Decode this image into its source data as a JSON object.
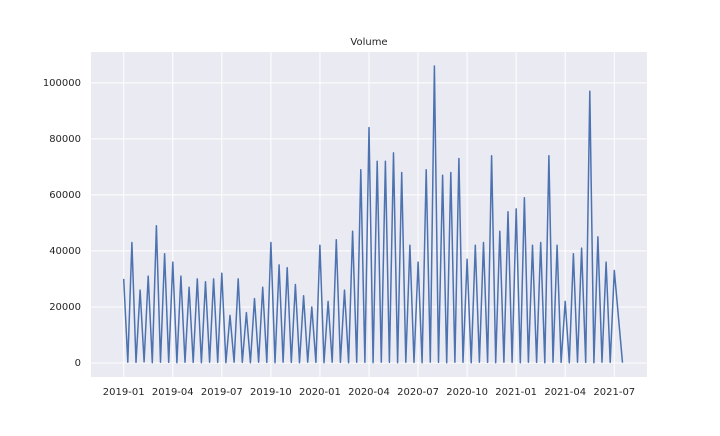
{
  "chart_data": {
    "type": "line",
    "title": "Volume",
    "grid": true,
    "xlim": [
      "2018-11",
      "2021-09"
    ],
    "xticks": [
      "2019-01",
      "2019-04",
      "2019-07",
      "2019-10",
      "2020-01",
      "2020-04",
      "2020-07",
      "2020-10",
      "2021-01",
      "2021-04",
      "2021-07"
    ],
    "ylim": [
      -5000,
      111000
    ],
    "yticks": [
      0,
      20000,
      40000,
      60000,
      80000,
      100000
    ],
    "x": [
      "2019-01",
      "2019-01",
      "2019-01",
      "2019-01",
      "2019-02",
      "2019-02",
      "2019-02",
      "2019-02",
      "2019-03",
      "2019-03",
      "2019-03",
      "2019-03",
      "2019-04",
      "2019-04",
      "2019-04",
      "2019-04",
      "2019-05",
      "2019-05",
      "2019-05",
      "2019-05",
      "2019-06",
      "2019-06",
      "2019-06",
      "2019-06",
      "2019-07",
      "2019-07",
      "2019-07",
      "2019-07",
      "2019-08",
      "2019-08",
      "2019-08",
      "2019-08",
      "2019-09",
      "2019-09",
      "2019-09",
      "2019-09",
      "2019-10",
      "2019-10",
      "2019-10",
      "2019-10",
      "2019-11",
      "2019-11",
      "2019-11",
      "2019-11",
      "2019-12",
      "2019-12",
      "2019-12",
      "2019-12",
      "2020-01",
      "2020-01",
      "2020-01",
      "2020-01",
      "2020-02",
      "2020-02",
      "2020-02",
      "2020-02",
      "2020-03",
      "2020-03",
      "2020-03",
      "2020-03",
      "2020-04",
      "2020-04",
      "2020-04",
      "2020-04",
      "2020-05",
      "2020-05",
      "2020-05",
      "2020-05",
      "2020-06",
      "2020-06",
      "2020-06",
      "2020-06",
      "2020-07",
      "2020-07",
      "2020-07",
      "2020-07",
      "2020-08",
      "2020-08",
      "2020-08",
      "2020-08",
      "2020-09",
      "2020-09",
      "2020-09",
      "2020-09",
      "2020-10",
      "2020-10",
      "2020-10",
      "2020-10",
      "2020-11",
      "2020-11",
      "2020-11",
      "2020-11",
      "2020-12",
      "2020-12",
      "2020-12",
      "2020-12",
      "2021-01",
      "2021-01",
      "2021-01",
      "2021-01",
      "2021-02",
      "2021-02",
      "2021-02",
      "2021-02",
      "2021-03",
      "2021-03",
      "2021-03",
      "2021-03",
      "2021-04",
      "2021-04",
      "2021-04",
      "2021-04",
      "2021-05",
      "2021-05",
      "2021-05",
      "2021-05",
      "2021-06",
      "2021-06",
      "2021-06",
      "2021-06",
      "2021-07",
      "2021-07"
    ],
    "series": [
      {
        "name": "Volume",
        "color": "#4c72b0",
        "values": [
          30000,
          300,
          43000,
          200,
          26000,
          400,
          31000,
          100,
          49000,
          300,
          39000,
          200,
          36000,
          100,
          31000,
          300,
          27000,
          200,
          30000,
          100,
          29000,
          300,
          30000,
          200,
          32000,
          100,
          17000,
          300,
          30000,
          200,
          18000,
          100,
          23000,
          300,
          27000,
          200,
          43000,
          100,
          35000,
          300,
          34000,
          200,
          28000,
          100,
          24000,
          300,
          20000,
          200,
          42000,
          100,
          22000,
          300,
          44000,
          200,
          26000,
          100,
          47000,
          300,
          69000,
          200,
          84000,
          100,
          72000,
          300,
          72000,
          200,
          75000,
          100,
          68000,
          300,
          42000,
          200,
          36000,
          100,
          69000,
          300,
          106000,
          200,
          67000,
          100,
          68000,
          300,
          73000,
          200,
          37000,
          100,
          42000,
          300,
          43000,
          200,
          74000,
          100,
          47000,
          300,
          54000,
          200,
          55000,
          100,
          59000,
          300,
          42000,
          200,
          43000,
          100,
          74000,
          300,
          42000,
          200,
          22000,
          100,
          39000,
          300,
          41000,
          200,
          97000,
          100,
          45000,
          300,
          36000,
          200,
          33000,
          100
        ]
      }
    ]
  }
}
